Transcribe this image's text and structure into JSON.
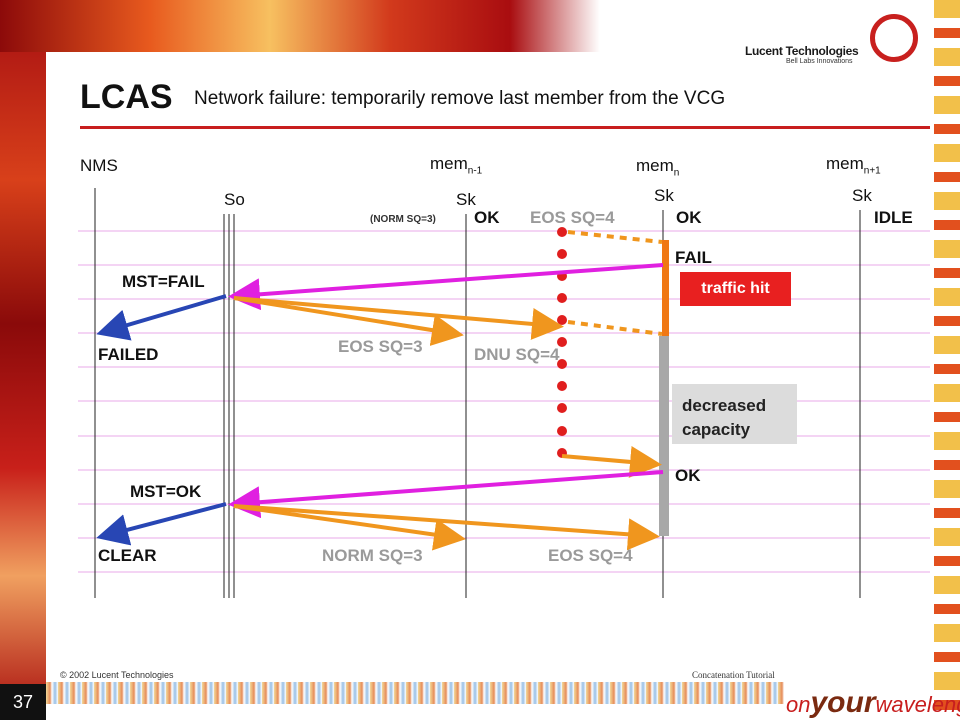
{
  "slide": {
    "title": "LCAS",
    "subtitle": "Network failure: temporarily remove last member from the VCG",
    "page_number": "37",
    "footer_left": "© 2002 Lucent Technologies",
    "footer_right": "Concatenation Tutorial"
  },
  "logo": {
    "name": "Lucent Technologies",
    "sub": "Bell Labs Innovations",
    "icon": "lucent-ring-icon"
  },
  "brand": {
    "pre": "on",
    "mid": "your",
    "post": "wavelength"
  },
  "nodes": {
    "nms": "NMS",
    "mem_prev": "mem",
    "mem_prev_sub": "n-1",
    "mem_cur": "mem",
    "mem_cur_sub": "n",
    "mem_next": "mem",
    "mem_next_sub": "n+1",
    "so": "So",
    "sk1": "Sk",
    "sk2": "Sk",
    "sk3": "Sk"
  },
  "labels": {
    "norm_sq3_small": "(NORM SQ=3)",
    "ok1": "OK",
    "eos_sq4_top": "EOS SQ=4",
    "ok2": "OK",
    "idle": "IDLE",
    "fail": "FAIL",
    "mst_fail": "MST=FAIL",
    "traffic_hit": "traffic hit",
    "failed": "FAILED",
    "eos_sq3": "EOS SQ=3",
    "dnu_sq4": "DNU SQ=4",
    "decreased": "decreased",
    "capacity": "capacity",
    "ok3": "OK",
    "mst_ok": "MST=OK",
    "clear": "CLEAR",
    "norm_sq3": "NORM SQ=3",
    "eos_sq4_bottom": "EOS SQ=4"
  },
  "colors": {
    "magenta": "#e020e0",
    "orange": "#f0961e",
    "blue": "#2846b4",
    "red": "#e01e1e",
    "grey_bar": "#a8a8a8",
    "orange_bar": "#f07814",
    "grid": "#e8a8e8"
  }
}
